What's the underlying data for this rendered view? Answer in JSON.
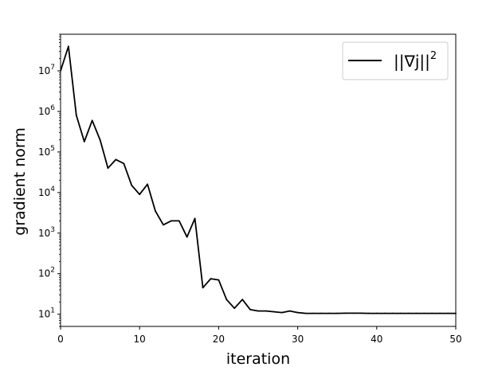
{
  "chart_data": {
    "type": "line",
    "xlabel": "iteration",
    "ylabel": "gradient norm",
    "xlim": [
      0,
      50
    ],
    "ylim": [
      5,
      80000000
    ],
    "yscale": "log",
    "grid": false,
    "legend": {
      "position": "top-right"
    },
    "xticks": [
      0,
      10,
      20,
      30,
      40,
      50
    ],
    "yticks": [
      {
        "value": 10,
        "base": "10",
        "exp": "1"
      },
      {
        "value": 100,
        "base": "10",
        "exp": "2"
      },
      {
        "value": 1000,
        "base": "10",
        "exp": "3"
      },
      {
        "value": 10000,
        "base": "10",
        "exp": "4"
      },
      {
        "value": 100000,
        "base": "10",
        "exp": "5"
      },
      {
        "value": 1000000,
        "base": "10",
        "exp": "6"
      },
      {
        "value": 10000000,
        "base": "10",
        "exp": "7"
      }
    ],
    "series": [
      {
        "name_base": "||∇j||",
        "name_exp": "2",
        "color": "#000000",
        "x": [
          0,
          1,
          2,
          3,
          4,
          5,
          6,
          7,
          8,
          9,
          10,
          11,
          12,
          13,
          14,
          15,
          16,
          17,
          18,
          19,
          20,
          21,
          22,
          23,
          24,
          25,
          26,
          27,
          28,
          29,
          30,
          31,
          32,
          33,
          34,
          35,
          36,
          37,
          38,
          39,
          40,
          41,
          42,
          43,
          44,
          45,
          46,
          47,
          48,
          49,
          50
        ],
        "y": [
          10000000,
          40000000,
          800000,
          180000,
          600000,
          200000,
          40000,
          65000,
          52000,
          15000,
          9000,
          16000,
          3500,
          1600,
          2000,
          2000,
          800,
          2300,
          45,
          75,
          70,
          23,
          14,
          23,
          13,
          12,
          12,
          11.5,
          11,
          12,
          11,
          10.5,
          10.5,
          10.5,
          10.5,
          10.5,
          10.6,
          10.6,
          10.6,
          10.5,
          10.5,
          10.5,
          10.5,
          10.5,
          10.5,
          10.5,
          10.5,
          10.5,
          10.5,
          10.5,
          10.5
        ]
      }
    ]
  }
}
